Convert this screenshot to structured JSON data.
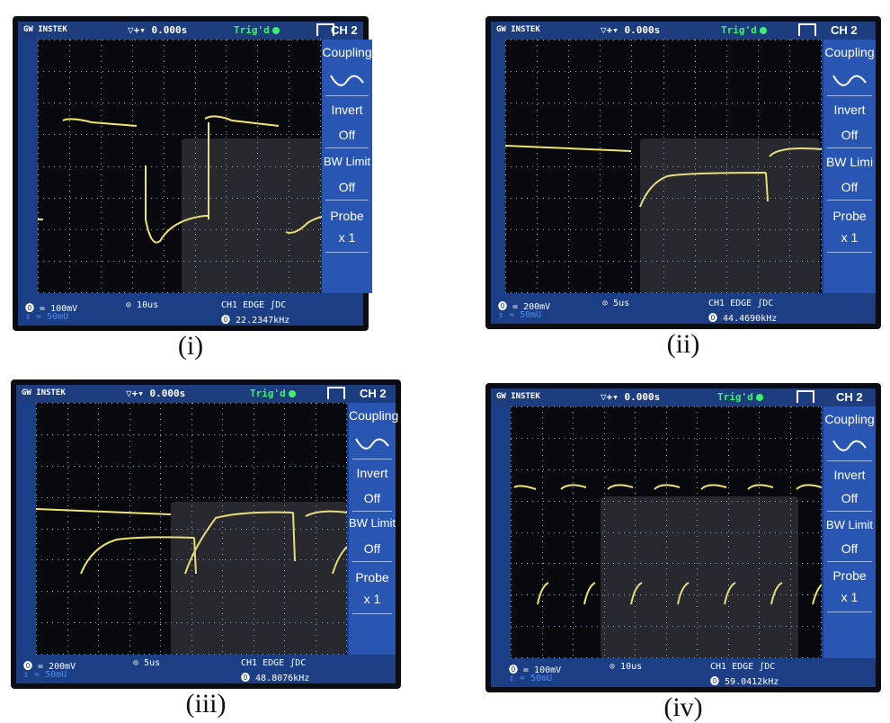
{
  "panels": [
    {
      "caption": "(i)",
      "brand": "GW INSTEK",
      "timebase_offset": "0.000s",
      "trigger": "Trig'd",
      "channel": "CH 2",
      "menu": {
        "coupling": "Coupling",
        "invert": "Invert",
        "invert_value": "Off",
        "bw_limit": "BW Limit",
        "bw_value": "Off",
        "probe": "Probe",
        "probe_value": "x 1"
      },
      "status": {
        "volts_div": "= 100mV",
        "sub": "↕ ≈ 50mU",
        "time_div": "10us",
        "trigger_source": "CH1",
        "trigger_type": "EDGE",
        "trigger_coupling": "DC",
        "frequency": "22.2347kHz"
      }
    },
    {
      "caption": "(ii)",
      "brand": "GW INSTEK",
      "timebase_offset": "0.000s",
      "trigger": "Trig'd",
      "channel": "CH 2",
      "menu": {
        "coupling": "Coupling",
        "invert": "Invert",
        "invert_value": "Off",
        "bw_limit": "BW Limi",
        "bw_value": "Off",
        "probe": "Probe",
        "probe_value": "x 1"
      },
      "status": {
        "volts_div": "= 200mV",
        "sub": "↕ ≈ 50mU",
        "time_div": "5us",
        "trigger_source": "CH1",
        "trigger_type": "EDGE",
        "trigger_coupling": "DC",
        "frequency": "44.4690kHz"
      }
    },
    {
      "caption": "(iii)",
      "brand": "GW INSTEK",
      "timebase_offset": "0.000s",
      "trigger": "Trig'd",
      "channel": "CH 2",
      "menu": {
        "coupling": "Coupling",
        "invert": "Invert",
        "invert_value": "Off",
        "bw_limit": "BW Limit",
        "bw_value": "Off",
        "probe": "Probe",
        "probe_value": "x 1"
      },
      "status": {
        "volts_div": "= 200mV",
        "sub": "↕ ≈ 50mU",
        "time_div": "5us",
        "trigger_source": "CH1",
        "trigger_type": "EDGE",
        "trigger_coupling": "DC",
        "frequency": "48.8076kHz"
      }
    },
    {
      "caption": "(iv)",
      "brand": "GW INSTEK",
      "timebase_offset": "0.000s",
      "trigger": "Trig'd",
      "channel": "CH 2",
      "menu": {
        "coupling": "Coupling",
        "invert": "Invert",
        "invert_value": "Off",
        "bw_limit": "BW Limit",
        "bw_value": "Off",
        "probe": "Probe",
        "probe_value": "x 1"
      },
      "status": {
        "volts_div": "= 100mV",
        "sub": "↕ ≈ 50mU",
        "time_div": "10us",
        "trigger_source": "CH1",
        "trigger_type": "EDGE",
        "trigger_coupling": "DC",
        "frequency": "59.0412kHz"
      }
    }
  ],
  "colors": {
    "trace": "#f2e46a",
    "grid_dots": "#9aa6b8",
    "screen_frame": "#1b3f86",
    "menu_bg": "#2a56b3"
  }
}
